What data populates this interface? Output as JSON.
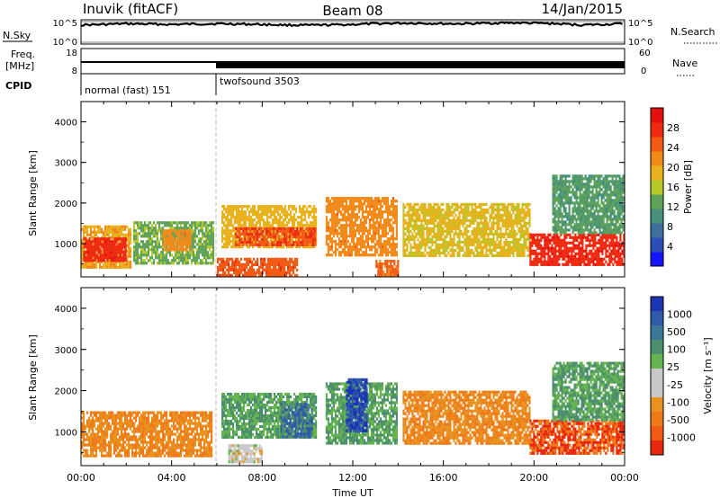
{
  "header": {
    "station": "Inuvik (fitACF)",
    "beam": "Beam 08",
    "date": "14/Jan/2015"
  },
  "summary_panels": {
    "nsky": {
      "left_label": "N.Sky",
      "left_ticks": [
        "10^5",
        "10^0"
      ],
      "right_ticks": [
        "10^5",
        "10^0"
      ],
      "right_label": "N.Search"
    },
    "freq": {
      "left_label_1": "Freq.",
      "left_label_2": "[MHz]",
      "left_ticks": [
        "18",
        "8"
      ],
      "right_ticks": [
        "60",
        "0"
      ],
      "right_label": "Nave"
    },
    "cpid": {
      "label": "CPID",
      "segments": [
        {
          "name": "normal (fast) 151"
        },
        {
          "name": "twofsound 3503"
        }
      ]
    }
  },
  "x_axis": {
    "label": "Time UT",
    "ticks": [
      "00:00",
      "04:00",
      "08:00",
      "12:00",
      "16:00",
      "20:00",
      "00:00"
    ],
    "range_hours": [
      0,
      24
    ]
  },
  "y_axis": {
    "label": "Slant Range [km]",
    "ticks": [
      "1000",
      "2000",
      "3000",
      "4000"
    ],
    "range_km": [
      180,
      4500
    ]
  },
  "colorbars": {
    "power": {
      "label": "Power [dB]",
      "ticks": [
        "4",
        "8",
        "12",
        "16",
        "20",
        "24",
        "28"
      ],
      "colors": [
        "#1414ff",
        "#2b4fb8",
        "#3f6f9c",
        "#46907e",
        "#5fa35a",
        "#b7c92a",
        "#e8b21e",
        "#f28a1a",
        "#f35a14",
        "#ee2a12",
        "#e4100e"
      ]
    },
    "velocity": {
      "label": "Velocity [m s⁻¹]",
      "ticks": [
        "1000",
        "500",
        "100",
        "25",
        "-25",
        "-100",
        "-500",
        "-1000"
      ],
      "colors": [
        "#1d35b5",
        "#2f5ba8",
        "#3b7897",
        "#4c8e6e",
        "#64b450",
        "#c8c8c8",
        "#c8c8c8",
        "#e89320",
        "#ef7a1a",
        "#f05a14",
        "#e8280e"
      ]
    }
  },
  "chart_data": [
    {
      "type": "line",
      "title": "N.Sky / N.Search",
      "x": [
        0,
        1,
        2,
        3,
        4,
        5,
        6,
        7,
        8,
        9,
        10,
        11,
        12,
        13,
        14,
        15,
        16,
        17,
        18,
        19,
        20,
        21,
        22,
        23,
        24
      ],
      "series": [
        {
          "name": "N.Sky",
          "values": [
            15000.0,
            20000.0,
            30000.0,
            25000.0,
            20000.0,
            25000.0,
            30000.0,
            25000.0,
            20000.0,
            15000.0,
            13000.0,
            15000.0,
            20000.0,
            30000.0,
            40000.0,
            40000.0,
            30000.0,
            30000.0,
            40000.0,
            50000.0,
            40000.0,
            30000.0,
            15000.0,
            20000.0,
            30000.0
          ]
        }
      ],
      "yscale": "log",
      "ylim": [
        1,
        100000.0
      ]
    },
    {
      "type": "line",
      "title": "Freq. [MHz] / Nave",
      "x": [
        0,
        6,
        6.01,
        24
      ],
      "series": [
        {
          "name": "Freq.",
          "values": [
            16.5,
            16.5,
            16.5,
            16.5
          ]
        }
      ],
      "ylim": [
        8,
        18
      ]
    },
    {
      "type": "heatmap",
      "title": "Power [dB]",
      "x_range_hours": [
        0,
        24
      ],
      "y_range_km": [
        180,
        4500
      ],
      "regions": [
        {
          "t0": 0.0,
          "t1": 2.2,
          "r0": 450,
          "r1": 1450,
          "value": 20
        },
        {
          "t0": 0.1,
          "t1": 2.0,
          "r0": 600,
          "r1": 1150,
          "value": 28
        },
        {
          "t0": 2.3,
          "t1": 5.8,
          "r0": 500,
          "r1": 1550,
          "value": 14
        },
        {
          "t0": 3.6,
          "t1": 4.8,
          "r0": 850,
          "r1": 1350,
          "value": 22
        },
        {
          "t0": 6.2,
          "t1": 10.4,
          "r0": 900,
          "r1": 1950,
          "value": 19
        },
        {
          "t0": 6.8,
          "t1": 10.3,
          "r0": 950,
          "r1": 1400,
          "value": 26
        },
        {
          "t0": 6.0,
          "t1": 9.5,
          "r0": 250,
          "r1": 650,
          "value": 25
        },
        {
          "t0": 10.8,
          "t1": 13.9,
          "r0": 750,
          "r1": 2150,
          "value": 22
        },
        {
          "t0": 13.0,
          "t1": 14.0,
          "r0": 200,
          "r1": 600,
          "value": 24
        },
        {
          "t0": 14.2,
          "t1": 19.8,
          "r0": 700,
          "r1": 2000,
          "value": 18
        },
        {
          "t0": 19.8,
          "t1": 24.0,
          "r0": 500,
          "r1": 1250,
          "value": 28
        },
        {
          "t0": 20.8,
          "t1": 24.0,
          "r0": 1300,
          "r1": 2700,
          "value": 12
        }
      ]
    },
    {
      "type": "heatmap",
      "title": "Velocity [m s⁻¹]",
      "x_range_hours": [
        0,
        24
      ],
      "y_range_km": [
        180,
        4500
      ],
      "regions": [
        {
          "t0": 0.0,
          "t1": 5.8,
          "r0": 450,
          "r1": 1500,
          "value": -100
        },
        {
          "t0": 6.2,
          "t1": 10.4,
          "r0": 850,
          "r1": 1950,
          "value": 100
        },
        {
          "t0": 8.8,
          "t1": 10.2,
          "r0": 900,
          "r1": 1700,
          "value": 500
        },
        {
          "t0": 6.5,
          "t1": 8.0,
          "r0": 300,
          "r1": 700,
          "value": 0
        },
        {
          "t0": 10.8,
          "t1": 13.9,
          "r0": 700,
          "r1": 2200,
          "value": 100
        },
        {
          "t0": 11.7,
          "t1": 12.6,
          "r0": 1000,
          "r1": 2300,
          "value": 1000
        },
        {
          "t0": 14.2,
          "t1": 19.8,
          "r0": 700,
          "r1": 2000,
          "value": -100
        },
        {
          "t0": 19.8,
          "t1": 24.0,
          "r0": 500,
          "r1": 1300,
          "value": -500
        },
        {
          "t0": 20.8,
          "t1": 24.0,
          "r0": 1300,
          "r1": 2700,
          "value": 100
        }
      ]
    }
  ]
}
